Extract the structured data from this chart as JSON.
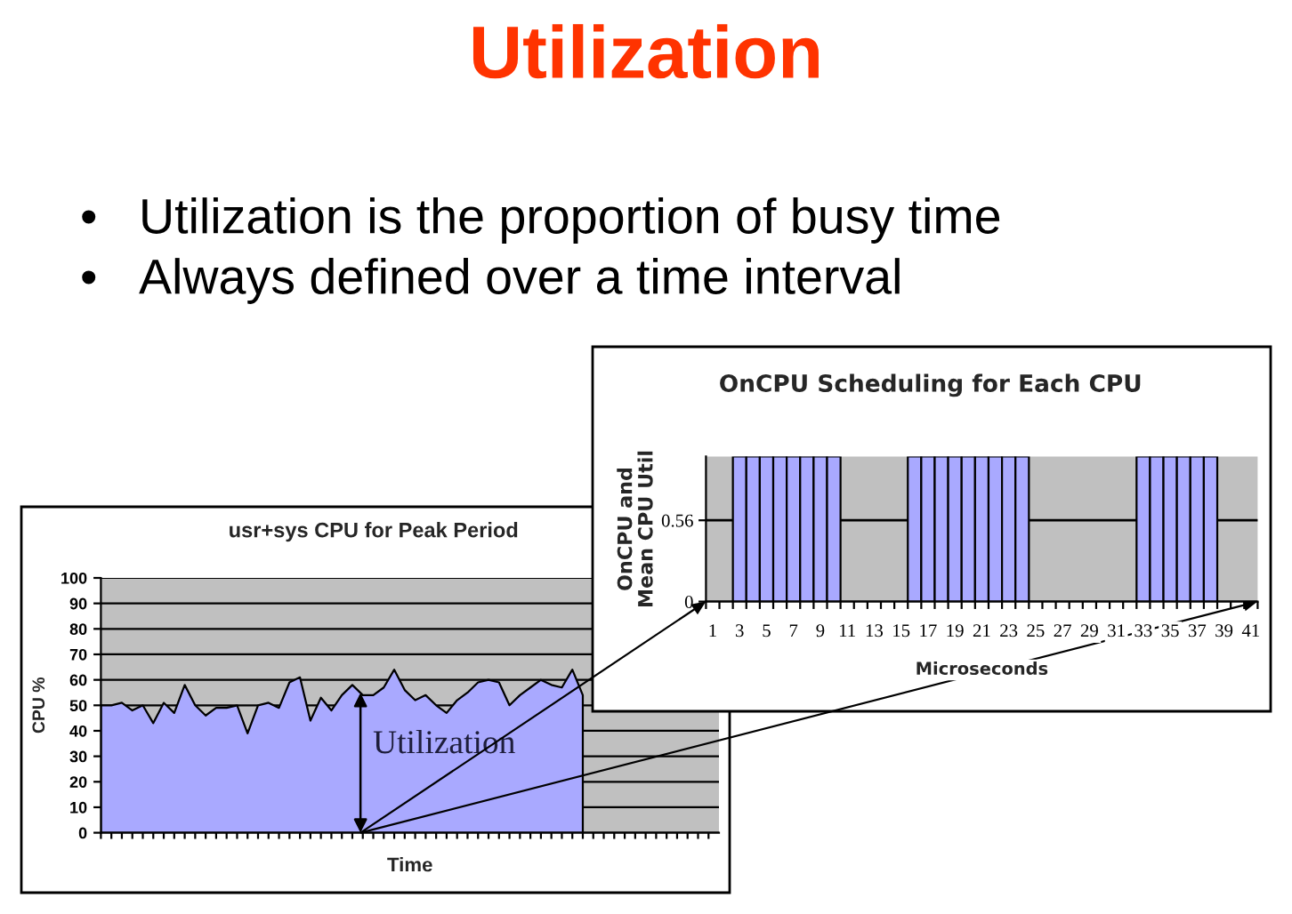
{
  "chart_data": [
    {
      "type": "other",
      "title": "Utilization",
      "annotations": [
        "• Utilization is the proportion of busy time",
        "• Always defined over a time interval"
      ]
    },
    {
      "type": "area",
      "title": "usr+sys CPU for Peak Period",
      "xlabel": "Time",
      "ylabel": "CPU %",
      "categories": [
        null,
        null,
        null,
        null,
        null,
        null,
        null,
        null,
        null,
        null,
        null,
        null,
        null,
        null,
        null,
        null,
        null,
        null,
        null,
        null,
        null,
        null,
        null,
        null,
        null,
        null,
        null,
        null,
        null,
        null,
        null,
        null,
        null,
        null,
        null,
        null,
        null,
        null,
        null,
        null,
        null,
        null,
        null,
        null,
        null,
        null,
        null
      ],
      "values": [
        50,
        50,
        51,
        48,
        50,
        43,
        51,
        47,
        58,
        50,
        46,
        49,
        49,
        50,
        39,
        50,
        51,
        49,
        59,
        61,
        44,
        53,
        48,
        54,
        58,
        54,
        54,
        57,
        64,
        56,
        52,
        54,
        50,
        47,
        52,
        55,
        59,
        60,
        59,
        50,
        54,
        57,
        60,
        58,
        57,
        64,
        54
      ],
      "color": "#a9a9ff",
      "ylim": [
        0,
        100
      ],
      "yticks": [
        0,
        10,
        20,
        30,
        40,
        50,
        60,
        70,
        80,
        90,
        100
      ],
      "grid": "y",
      "annotations": [
        "Utilization"
      ]
    },
    {
      "type": "bar",
      "title": "OnCPU Scheduling for Each CPU",
      "xlabel": "Microseconds",
      "ylabel": "OnCPU and\nMean CPU Util",
      "categories": [
        "1",
        null,
        "3",
        null,
        "5",
        null,
        "7",
        null,
        "9",
        null,
        "11",
        null,
        "13",
        null,
        "15",
        null,
        "17",
        null,
        "19",
        null,
        "21",
        null,
        "23",
        null,
        "25",
        null,
        "27",
        null,
        "29",
        null,
        "31",
        null,
        "33",
        null,
        "35",
        null,
        "37",
        null,
        "39",
        null,
        "41"
      ],
      "values": [
        0,
        0,
        1,
        1,
        1,
        1,
        1,
        1,
        1,
        1,
        0,
        0,
        0,
        0,
        0,
        1,
        1,
        1,
        1,
        1,
        1,
        1,
        1,
        1,
        0,
        0,
        0,
        0,
        0,
        0,
        0,
        0,
        1,
        1,
        1,
        1,
        1,
        1,
        0,
        0,
        0
      ],
      "color": "#a9a9ff",
      "ylim": [
        0,
        1
      ],
      "yticks": [
        0,
        0.56
      ],
      "ref_lines": [
        {
          "axis": "y",
          "value": 0.56,
          "color": "#000000"
        }
      ]
    }
  ]
}
